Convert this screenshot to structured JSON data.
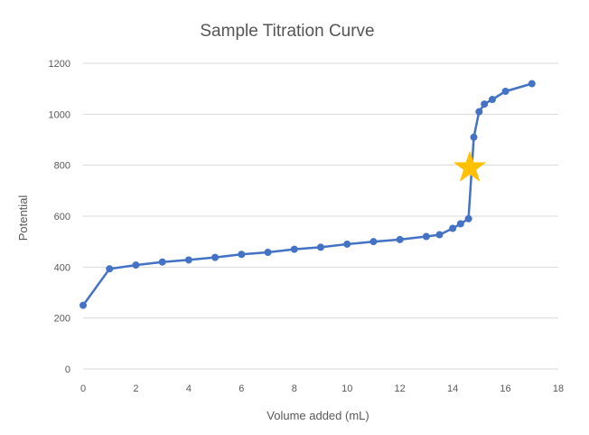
{
  "chart_data": {
    "type": "scatter",
    "title": "Sample Titration Curve",
    "xlabel": "Volume added (mL)",
    "ylabel": "Potential",
    "xlim": [
      0,
      18
    ],
    "ylim": [
      0,
      1200
    ],
    "xticks": [
      0,
      2,
      4,
      6,
      8,
      10,
      12,
      14,
      16,
      18
    ],
    "yticks": [
      0,
      200,
      400,
      600,
      800,
      1000,
      1200
    ],
    "grid": "horizontal",
    "line_style": "straight lines with markers",
    "series": [
      {
        "color": "#4472c4",
        "x": [
          0,
          1,
          2,
          3,
          4,
          5,
          6,
          7,
          8,
          9,
          10,
          11,
          12,
          13,
          13.5,
          14,
          14.3,
          14.6,
          14.8,
          15,
          15.2,
          15.5,
          16,
          17
        ],
        "y": [
          250,
          393,
          408,
          420,
          428,
          438,
          450,
          458,
          470,
          478,
          490,
          500,
          508,
          520,
          527,
          552,
          570,
          590,
          910,
          1010,
          1040,
          1058,
          1090,
          1120
        ]
      }
    ],
    "annotations": [
      {
        "type": "star",
        "x": 14.65,
        "y": 790,
        "color": "#ffc000"
      }
    ]
  }
}
